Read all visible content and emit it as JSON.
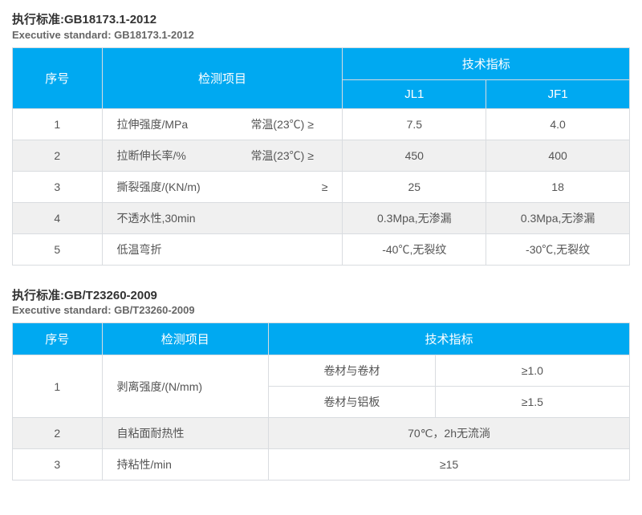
{
  "section1": {
    "title_cn": "执行标准:GB18173.1-2012",
    "title_en": "Executive standard: GB18173.1-2012",
    "head_seq": "序号",
    "head_item": "检测项目",
    "head_tech": "技术指标",
    "sub_jl1": "JL1",
    "sub_jf1": "JF1",
    "rows": [
      {
        "n": "1",
        "item": "拉伸强度/MPa",
        "cond": "常温(23℃) ≥",
        "jl1": "7.5",
        "jf1": "4.0",
        "stripe": false,
        "split": true
      },
      {
        "n": "2",
        "item": "拉断伸长率/%",
        "cond": "常温(23℃) ≥",
        "jl1": "450",
        "jf1": "400",
        "stripe": true,
        "split": true
      },
      {
        "n": "3",
        "item": "撕裂强度/(KN/m)",
        "cond": "≥",
        "jl1": "25",
        "jf1": "18",
        "stripe": false,
        "split": false
      },
      {
        "n": "4",
        "item": "不透水性,30min",
        "cond": "",
        "jl1": "0.3Mpa,无渗漏",
        "jf1": "0.3Mpa,无渗漏",
        "stripe": true,
        "split": false
      },
      {
        "n": "5",
        "item": "低温弯折",
        "cond": "",
        "jl1": "-40℃,无裂纹",
        "jf1": "-30℃,无裂纹",
        "stripe": false,
        "split": false
      }
    ]
  },
  "section2": {
    "title_cn": "执行标准:GB/T23260-2009",
    "title_en": "Executive standard: GB/T23260-2009",
    "head_seq": "序号",
    "head_item": "检测项目",
    "head_tech": "技术指标",
    "r1_n": "1",
    "r1_item": "剥离强度/(N/mm)",
    "r1_sub1": "卷材与卷材",
    "r1_v1": "≥1.0",
    "r1_sub2": "卷材与铝板",
    "r1_v2": "≥1.5",
    "r2_n": "2",
    "r2_item": "自粘面耐热性",
    "r2_v": "70℃，2h无流淌",
    "r3_n": "3",
    "r3_item": "持粘性/min",
    "r3_v": "≥15"
  },
  "colors": {
    "header_bg": "#00a9f1",
    "header_fg": "#ffffff",
    "border": "#d9dce0",
    "stripe": "#f0f0f0",
    "text": "#555"
  }
}
